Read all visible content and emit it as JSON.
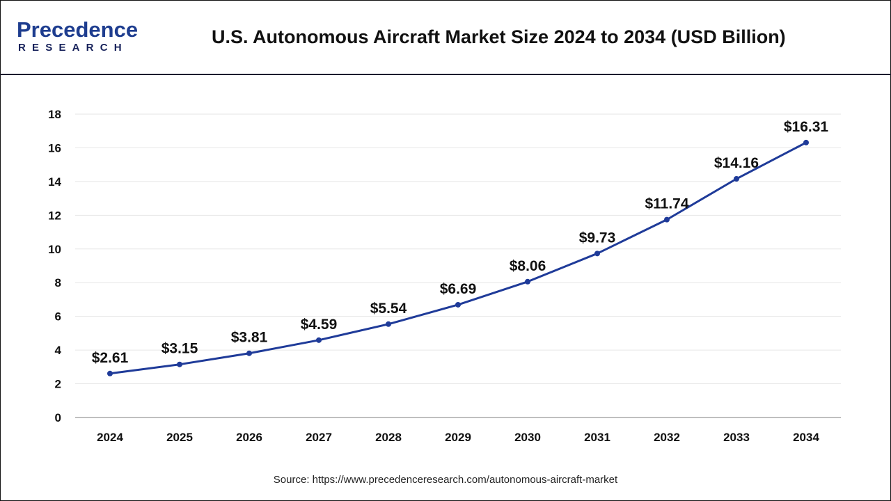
{
  "header": {
    "logo_text": "Precedence",
    "logo_subtext": "RESEARCH",
    "title": "U.S. Autonomous Aircraft Market Size 2024 to 2034 (USD Billion)"
  },
  "source": "Source: https://www.precedenceresearch.com/autonomous-aircraft-market",
  "colors": {
    "line": "#1f3b99",
    "grid": "#e6e6e6",
    "axis": "#bfbfbf"
  },
  "chart_data": {
    "type": "line",
    "title": "U.S. Autonomous Aircraft Market Size 2024 to 2034 (USD Billion)",
    "xlabel": "",
    "ylabel": "",
    "categories": [
      "2024",
      "2025",
      "2026",
      "2027",
      "2028",
      "2029",
      "2030",
      "2031",
      "2032",
      "2033",
      "2034"
    ],
    "values": [
      2.61,
      3.15,
      3.81,
      4.59,
      5.54,
      6.69,
      8.06,
      9.73,
      11.74,
      14.16,
      16.31
    ],
    "data_labels": [
      "$2.61",
      "$3.15",
      "$3.81",
      "$4.59",
      "$5.54",
      "$6.69",
      "$8.06",
      "$9.73",
      "$11.74",
      "$14.16",
      "$16.31"
    ],
    "ylim": [
      0,
      18
    ],
    "yticks": [
      "0",
      "2",
      "4",
      "6",
      "8",
      "10",
      "12",
      "14",
      "16",
      "18"
    ],
    "grid": true,
    "legend": "none"
  }
}
